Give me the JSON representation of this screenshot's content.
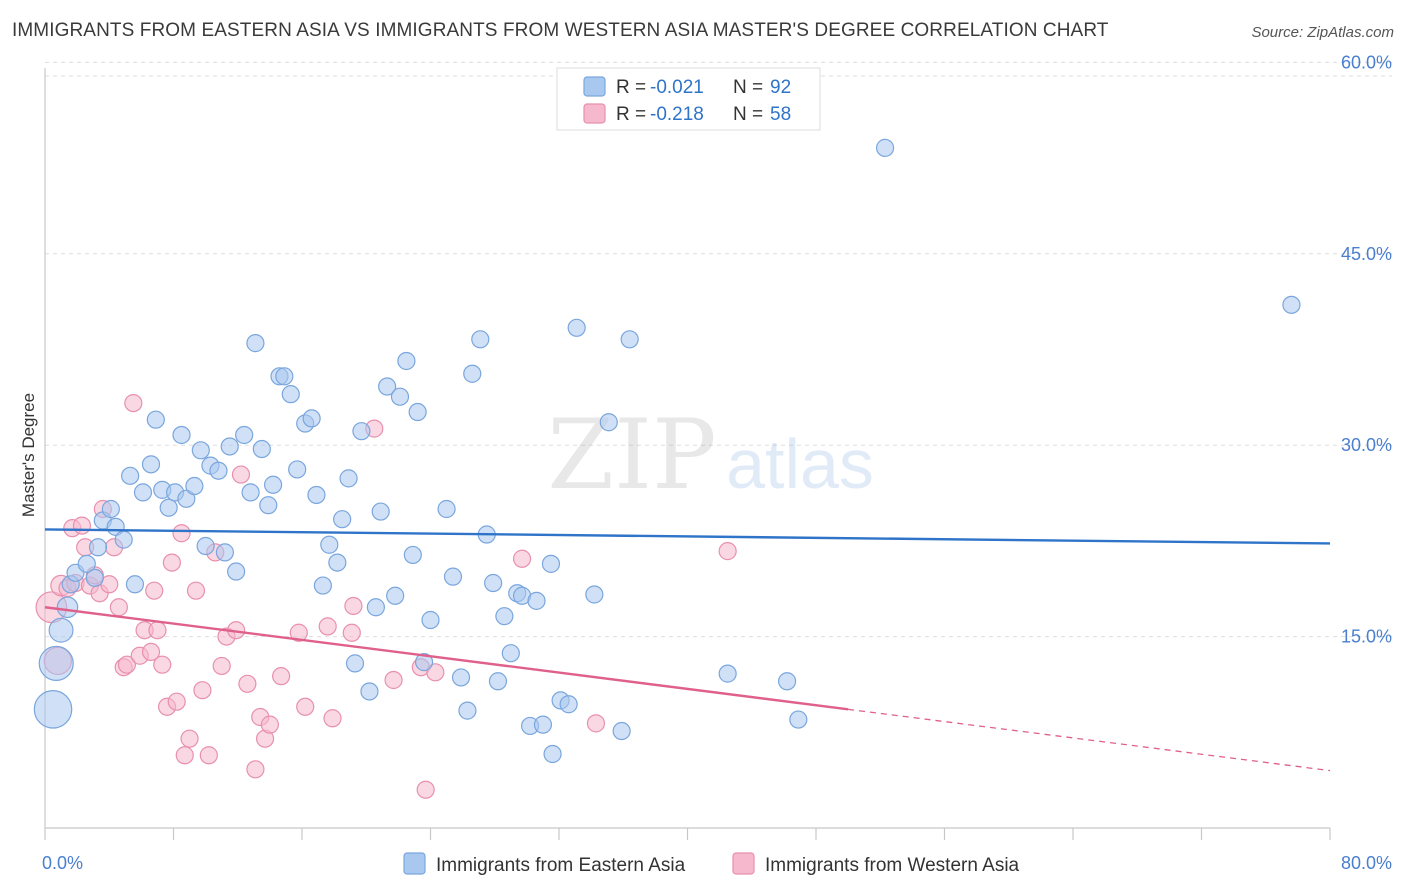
{
  "title": "IMMIGRANTS FROM EASTERN ASIA VS IMMIGRANTS FROM WESTERN ASIA MASTER'S DEGREE CORRELATION CHART",
  "source": "Source: ZipAtlas.com",
  "watermark": {
    "part1": "ZIP",
    "part2": "atlas"
  },
  "colors": {
    "blue_fill": "#a9c8f0",
    "blue_stroke": "#7aa6dd",
    "blue_line": "#2f74c8",
    "pink_fill": "#f5b8cc",
    "pink_stroke": "#e890ae",
    "pink_line": "#e0608c",
    "tick_text": "#4a7fcf",
    "grid": "#dddddd"
  },
  "chart_data": {
    "type": "scatter",
    "xlim": [
      0,
      80
    ],
    "ylim": [
      0,
      62
    ],
    "x_tick_labels": [
      "0.0%",
      "80.0%"
    ],
    "y_ticks": [
      {
        "value": 15,
        "label": "15.0%"
      },
      {
        "value": 30,
        "label": "30.0%"
      },
      {
        "value": 45,
        "label": "45.0%"
      },
      {
        "value": 60,
        "label": "60.0%"
      }
    ],
    "ylabel": "Master's Degree",
    "xlabel": "",
    "grid": "horizontal dashed",
    "legend_stats": [
      {
        "r_label": "R = ",
        "r_value": "-0.021",
        "n_label": "N = ",
        "n_value": "92"
      },
      {
        "r_label": "R = ",
        "r_value": "-0.218",
        "n_label": "N = ",
        "n_value": "58"
      }
    ],
    "series": [
      {
        "name": "Immigrants from Eastern Asia",
        "color": "blue",
        "trend": {
          "x": [
            0,
            80
          ],
          "y": [
            23.4,
            22.3
          ],
          "dashed_from": null
        },
        "points": [
          [
            0.5,
            9.3,
            2.2
          ],
          [
            0.7,
            12.9,
            2.0
          ],
          [
            1.0,
            15.5,
            1.4
          ],
          [
            1.4,
            17.3,
            1.2
          ],
          [
            1.6,
            19.1,
            1.0
          ],
          [
            1.9,
            20.0,
            1.0
          ],
          [
            2.6,
            20.7,
            1.0
          ],
          [
            3.3,
            22.0,
            1.0
          ],
          [
            3.1,
            19.6,
            1.0
          ],
          [
            3.6,
            24.1,
            1.0
          ],
          [
            4.1,
            25.0,
            1.0
          ],
          [
            4.4,
            23.6,
            1.0
          ],
          [
            4.9,
            22.6,
            1.0
          ],
          [
            5.3,
            27.6,
            1.0
          ],
          [
            5.6,
            19.1,
            1.0
          ],
          [
            6.1,
            26.3,
            1.0
          ],
          [
            6.6,
            28.5,
            1.0
          ],
          [
            6.9,
            32.0,
            1.0
          ],
          [
            7.3,
            26.5,
            1.0
          ],
          [
            7.7,
            25.1,
            1.0
          ],
          [
            8.1,
            26.3,
            1.0
          ],
          [
            8.5,
            30.8,
            1.0
          ],
          [
            8.8,
            25.8,
            1.0
          ],
          [
            9.3,
            26.8,
            1.0
          ],
          [
            9.7,
            29.6,
            1.0
          ],
          [
            10.0,
            22.1,
            1.0
          ],
          [
            10.3,
            28.4,
            1.0
          ],
          [
            10.8,
            28.0,
            1.0
          ],
          [
            11.2,
            21.6,
            1.0
          ],
          [
            11.5,
            29.9,
            1.0
          ],
          [
            11.9,
            20.1,
            1.0
          ],
          [
            12.4,
            30.8,
            1.0
          ],
          [
            12.8,
            26.3,
            1.0
          ],
          [
            13.1,
            38.0,
            1.0
          ],
          [
            13.5,
            29.7,
            1.0
          ],
          [
            13.9,
            25.3,
            1.0
          ],
          [
            14.2,
            26.9,
            1.0
          ],
          [
            14.6,
            35.4,
            1.0
          ],
          [
            14.9,
            35.4,
            1.0
          ],
          [
            15.3,
            34.0,
            1.0
          ],
          [
            15.7,
            28.1,
            1.0
          ],
          [
            16.2,
            31.7,
            1.0
          ],
          [
            16.6,
            32.1,
            1.0
          ],
          [
            16.9,
            26.1,
            1.0
          ],
          [
            17.3,
            19.0,
            1.0
          ],
          [
            17.7,
            22.2,
            1.0
          ],
          [
            18.2,
            20.8,
            1.0
          ],
          [
            18.5,
            24.2,
            1.0
          ],
          [
            18.9,
            27.4,
            1.0
          ],
          [
            19.3,
            12.9,
            1.0
          ],
          [
            19.7,
            31.1,
            1.0
          ],
          [
            20.2,
            10.7,
            1.0
          ],
          [
            20.6,
            17.3,
            1.0
          ],
          [
            20.9,
            24.8,
            1.0
          ],
          [
            21.3,
            34.6,
            1.0
          ],
          [
            21.8,
            18.2,
            1.0
          ],
          [
            22.1,
            33.8,
            1.0
          ],
          [
            22.5,
            36.6,
            1.0
          ],
          [
            22.9,
            21.4,
            1.0
          ],
          [
            23.2,
            32.6,
            1.0
          ],
          [
            23.6,
            13.0,
            1.0
          ],
          [
            24.0,
            16.3,
            1.0
          ],
          [
            25.0,
            25.0,
            1.0
          ],
          [
            25.4,
            19.7,
            1.0
          ],
          [
            25.9,
            11.8,
            1.0
          ],
          [
            26.3,
            9.2,
            1.0
          ],
          [
            26.6,
            35.6,
            1.0
          ],
          [
            27.1,
            38.3,
            1.0
          ],
          [
            27.5,
            23.0,
            1.0
          ],
          [
            27.9,
            19.2,
            1.0
          ],
          [
            28.2,
            11.5,
            1.0
          ],
          [
            28.6,
            16.6,
            1.0
          ],
          [
            29.0,
            13.7,
            1.0
          ],
          [
            29.4,
            18.4,
            1.0
          ],
          [
            29.7,
            18.2,
            1.0
          ],
          [
            30.2,
            8.0,
            1.0
          ],
          [
            30.6,
            17.8,
            1.0
          ],
          [
            31.0,
            8.1,
            1.0
          ],
          [
            31.5,
            20.7,
            1.0
          ],
          [
            31.6,
            5.8,
            1.0
          ],
          [
            32.1,
            10.0,
            1.0
          ],
          [
            32.6,
            9.7,
            1.0
          ],
          [
            33.1,
            39.2,
            1.0
          ],
          [
            34.2,
            18.3,
            1.0
          ],
          [
            35.1,
            31.8,
            1.0
          ],
          [
            35.9,
            7.6,
            1.0
          ],
          [
            36.4,
            38.3,
            1.0
          ],
          [
            42.5,
            12.1,
            1.0
          ],
          [
            46.2,
            11.5,
            1.0
          ],
          [
            46.9,
            8.5,
            1.0
          ],
          [
            52.3,
            53.3,
            1.0
          ],
          [
            77.6,
            41.0,
            1.0
          ]
        ]
      },
      {
        "name": "Immigrants from Western Asia",
        "color": "pink",
        "trend": {
          "x": [
            0,
            50,
            80
          ],
          "y": [
            17.3,
            9.3,
            4.5
          ],
          "dashed_from": 50
        },
        "points": [
          [
            0.4,
            17.3,
            1.8
          ],
          [
            0.8,
            13.1,
            1.6
          ],
          [
            1.0,
            19.0,
            1.2
          ],
          [
            1.4,
            18.8,
            1.0
          ],
          [
            1.7,
            23.5,
            1.0
          ],
          [
            1.9,
            19.2,
            1.0
          ],
          [
            2.3,
            23.7,
            1.0
          ],
          [
            2.5,
            22.0,
            1.0
          ],
          [
            2.8,
            19.0,
            1.0
          ],
          [
            3.1,
            19.8,
            1.0
          ],
          [
            3.4,
            18.4,
            1.0
          ],
          [
            3.6,
            25.0,
            1.0
          ],
          [
            4.0,
            19.1,
            1.0
          ],
          [
            4.3,
            22.0,
            1.0
          ],
          [
            4.6,
            17.3,
            1.0
          ],
          [
            4.9,
            12.6,
            1.0
          ],
          [
            5.1,
            12.8,
            1.0
          ],
          [
            5.5,
            33.3,
            1.0
          ],
          [
            5.9,
            13.5,
            1.0
          ],
          [
            6.2,
            15.5,
            1.0
          ],
          [
            6.6,
            13.8,
            1.0
          ],
          [
            6.8,
            18.6,
            1.0
          ],
          [
            7.0,
            15.5,
            1.0
          ],
          [
            7.3,
            12.8,
            1.0
          ],
          [
            7.6,
            9.5,
            1.0
          ],
          [
            7.9,
            20.8,
            1.0
          ],
          [
            8.2,
            9.9,
            1.0
          ],
          [
            8.5,
            23.1,
            1.0
          ],
          [
            8.7,
            5.7,
            1.0
          ],
          [
            9.0,
            7.0,
            1.0
          ],
          [
            9.4,
            18.6,
            1.0
          ],
          [
            9.8,
            10.8,
            1.0
          ],
          [
            10.2,
            5.7,
            1.0
          ],
          [
            10.6,
            21.6,
            1.0
          ],
          [
            11.0,
            12.7,
            1.0
          ],
          [
            11.3,
            15.0,
            1.0
          ],
          [
            11.9,
            15.5,
            1.0
          ],
          [
            12.2,
            27.7,
            1.0
          ],
          [
            12.6,
            11.3,
            1.0
          ],
          [
            13.1,
            4.6,
            1.0
          ],
          [
            13.4,
            8.7,
            1.0
          ],
          [
            13.7,
            7.0,
            1.0
          ],
          [
            14.0,
            8.1,
            1.0
          ],
          [
            14.7,
            11.9,
            1.0
          ],
          [
            15.8,
            15.3,
            1.0
          ],
          [
            16.2,
            9.5,
            1.0
          ],
          [
            17.6,
            15.8,
            1.0
          ],
          [
            17.9,
            8.6,
            1.0
          ],
          [
            19.1,
            15.3,
            1.0
          ],
          [
            19.2,
            17.4,
            1.0
          ],
          [
            20.5,
            31.3,
            1.0
          ],
          [
            21.7,
            11.6,
            1.0
          ],
          [
            23.4,
            12.6,
            1.0
          ],
          [
            23.7,
            3.0,
            1.0
          ],
          [
            24.3,
            12.2,
            1.0
          ],
          [
            29.7,
            21.1,
            1.0
          ],
          [
            34.3,
            8.2,
            1.0
          ],
          [
            42.5,
            21.7,
            1.0
          ]
        ]
      }
    ]
  }
}
